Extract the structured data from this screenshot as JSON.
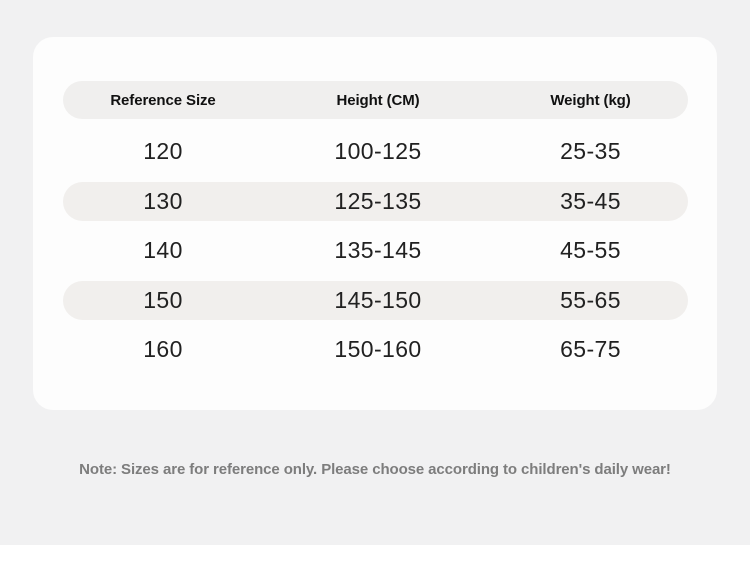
{
  "chart_data": {
    "type": "table",
    "title": "",
    "columns": [
      "Reference Size",
      "Height (CM)",
      "Weight (kg)"
    ],
    "rows": [
      [
        "120",
        "100-125",
        "25-35"
      ],
      [
        "130",
        "125-135",
        "35-45"
      ],
      [
        "140",
        "135-145",
        "45-55"
      ],
      [
        "150",
        "145-150",
        "55-65"
      ],
      [
        "160",
        "150-160",
        "65-75"
      ]
    ],
    "striped_rows": [
      1,
      3
    ],
    "note": "Note: Sizes are for reference only. Please choose according to children's daily wear!"
  },
  "colors": {
    "page_bg": "#f1f1f2",
    "card_bg": "#fdfdfd",
    "header_pill_bg": "#f0efee",
    "stripe_bg": "#f1efed",
    "header_text": "#111111",
    "cell_text": "#212121",
    "note_text": "#7d7d7d"
  }
}
